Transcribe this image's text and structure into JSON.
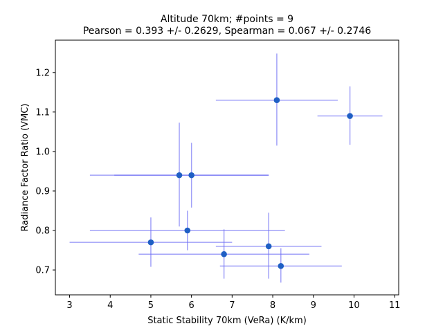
{
  "chart_data": {
    "type": "scatter",
    "title": "Altitude 70km;  #points =  9",
    "subtitle": "Pearson =  0.393 +/-  0.2629, Spearman =  0.067 +/-  0.2746",
    "xlabel": "Static Stability 70km (VeRa) (K/km)",
    "ylabel": "Radiance Factor Ratio (VMC)",
    "xlim": [
      2.65,
      11.1
    ],
    "ylim": [
      0.637,
      1.282
    ],
    "xticks": [
      3,
      4,
      5,
      6,
      7,
      8,
      9,
      10,
      11
    ],
    "yticks": [
      0.7,
      0.8,
      0.9,
      1.0,
      1.1,
      1.2
    ],
    "xtick_labels": [
      "3",
      "4",
      "5",
      "6",
      "7",
      "8",
      "9",
      "10",
      "11"
    ],
    "ytick_labels": [
      "0.7",
      "0.8",
      "0.9",
      "1.0",
      "1.1",
      "1.2"
    ],
    "grid": false,
    "colors": {
      "marker": "#1f5fc4",
      "errorbar": "#6f6ff5"
    },
    "points": [
      {
        "x": 8.1,
        "y": 1.13,
        "xerr": [
          6.6,
          9.6
        ],
        "yerr": [
          1.015,
          1.248
        ]
      },
      {
        "x": 9.9,
        "y": 1.09,
        "xerr": [
          9.1,
          10.7
        ],
        "yerr": [
          1.017,
          1.165
        ]
      },
      {
        "x": 5.7,
        "y": 0.94,
        "xerr": [
          3.5,
          7.9
        ],
        "yerr": [
          0.81,
          1.073
        ]
      },
      {
        "x": 6.0,
        "y": 0.94,
        "xerr": [
          4.1,
          7.9
        ],
        "yerr": [
          0.858,
          1.022
        ]
      },
      {
        "x": 5.9,
        "y": 0.8,
        "xerr": [
          3.5,
          8.3
        ],
        "yerr": [
          0.75,
          0.85
        ]
      },
      {
        "x": 5.0,
        "y": 0.77,
        "xerr": [
          3.0,
          7.0
        ],
        "yerr": [
          0.708,
          0.833
        ]
      },
      {
        "x": 7.9,
        "y": 0.76,
        "xerr": [
          6.6,
          9.2
        ],
        "yerr": [
          0.678,
          0.845
        ]
      },
      {
        "x": 6.8,
        "y": 0.74,
        "xerr": [
          4.7,
          8.9
        ],
        "yerr": [
          0.678,
          0.803
        ]
      },
      {
        "x": 8.2,
        "y": 0.71,
        "xerr": [
          6.7,
          9.7
        ],
        "yerr": [
          0.668,
          0.755
        ]
      }
    ]
  }
}
